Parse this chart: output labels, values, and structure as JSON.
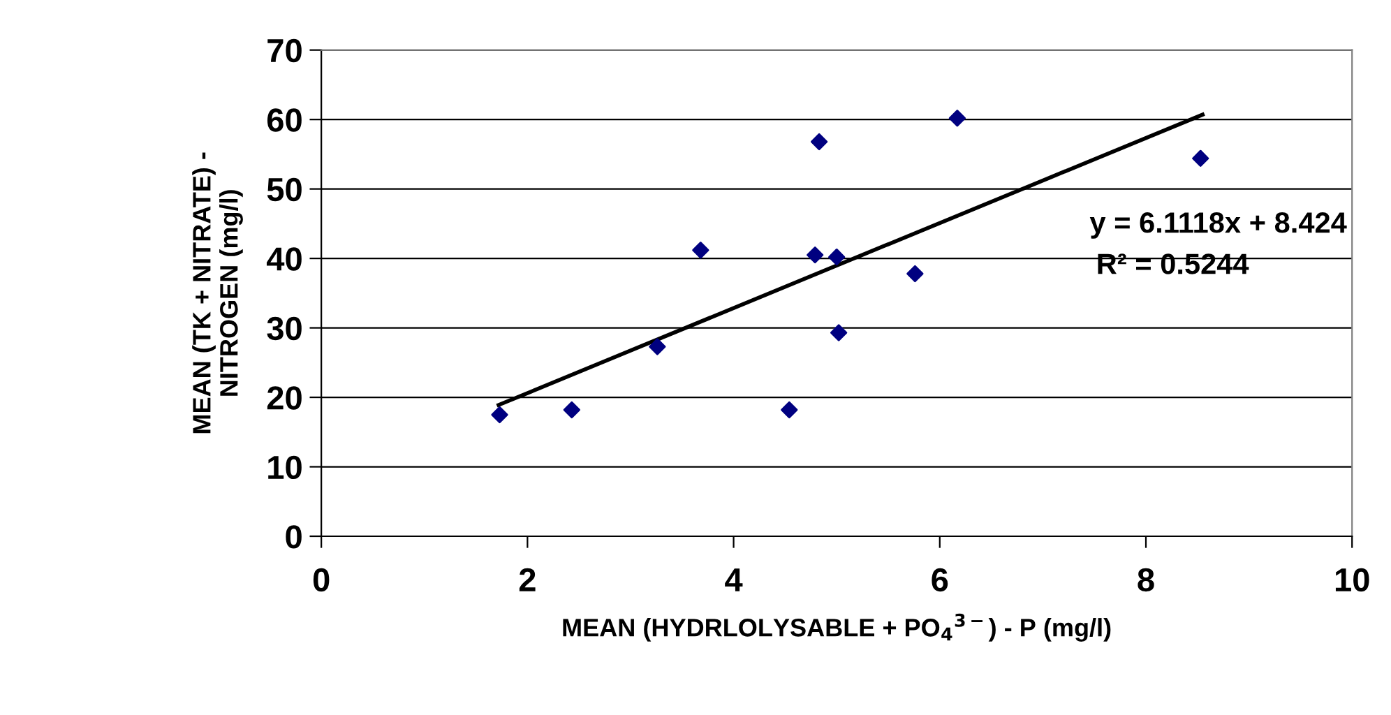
{
  "chart_data": {
    "type": "scatter",
    "xlabel": "MEAN (HYDRLOLYSABLE + PO$_{4}$$^{3−}$) - P (mg/l)",
    "ylabel": "MEAN (TK + NITRATE) -\nNITROGEN (mg/l)",
    "series": [
      {
        "color": "#000080",
        "marker": "diamond",
        "x": [
          1.73,
          2.43,
          3.26,
          3.68,
          4.54,
          4.79,
          4.83,
          5.0,
          5.02,
          5.76,
          6.17,
          8.53
        ],
        "values": [
          17.5,
          18.2,
          27.3,
          41.2,
          18.2,
          40.5,
          56.8,
          40.2,
          29.3,
          37.8,
          60.2,
          54.4
        ]
      },
      {
        "type": "line",
        "color": "#000000",
        "marker": "none",
        "line_style": "solid",
        "x": [
          1.72,
          8.55
        ],
        "values": [
          18.9,
          60.7
        ]
      }
    ],
    "annotations": [
      "y = 6.1118x + 8.424",
      "R² = 0.5244"
    ],
    "xlim": [
      0,
      10
    ],
    "xticks": [
      0,
      2,
      4,
      6,
      8,
      10
    ],
    "ylim": [
      0,
      70
    ],
    "yticks": [
      0,
      10,
      20,
      30,
      40,
      50,
      60,
      70
    ],
    "grid": "y",
    "legend": false
  }
}
